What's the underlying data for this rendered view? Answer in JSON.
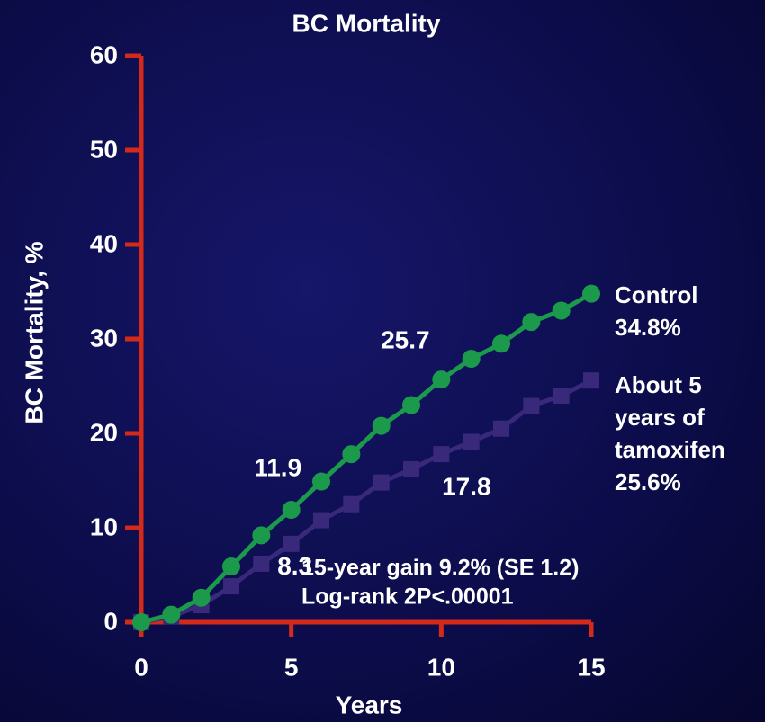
{
  "chart_data": {
    "type": "line",
    "title": "BC Mortality",
    "x_label": "Years",
    "y_label": "BC  Mortality, %",
    "x": [
      0,
      1,
      2,
      3,
      4,
      5,
      6,
      7,
      8,
      9,
      10,
      11,
      12,
      13,
      14,
      15
    ],
    "xlim": [
      0,
      15
    ],
    "xticks": [
      0,
      5,
      10,
      15
    ],
    "ylim": [
      0,
      60
    ],
    "yticks": [
      0,
      10,
      20,
      30,
      40,
      50,
      60
    ],
    "axis_color": "#d42a1a",
    "series": [
      {
        "name": "Control",
        "color": "#1b9a4c",
        "marker": "circle",
        "values": [
          0,
          0.8,
          2.6,
          5.9,
          9.2,
          11.9,
          14.9,
          17.8,
          20.8,
          23.0,
          25.7,
          27.9,
          29.5,
          31.8,
          33.0,
          34.8
        ],
        "value_labels": [
          null,
          null,
          null,
          null,
          null,
          null,
          null,
          null,
          null,
          null,
          null,
          null,
          null,
          null,
          null,
          "34.8%"
        ]
      },
      {
        "name": "About 5 years of tamoxifen",
        "color": "#38297a",
        "marker": "square",
        "values": [
          0,
          0.6,
          1.8,
          3.8,
          6.2,
          8.3,
          10.8,
          12.5,
          14.8,
          16.2,
          17.8,
          19.1,
          20.5,
          22.9,
          24.0,
          25.6
        ],
        "value_labels": [
          null,
          null,
          null,
          null,
          null,
          null,
          null,
          null,
          null,
          null,
          null,
          null,
          null,
          null,
          null,
          "25.6%"
        ]
      }
    ],
    "annotations": [
      "15-year gain 9.2% (SE 1.2)",
      "Log-rank 2P<.00001"
    ]
  }
}
